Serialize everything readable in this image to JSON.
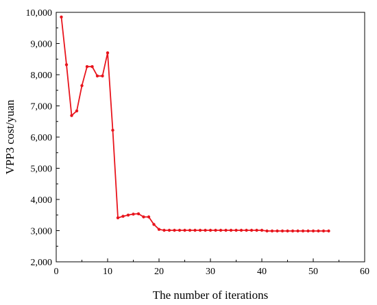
{
  "chart_data": {
    "type": "line",
    "title": "",
    "xlabel": "The number of iterations",
    "ylabel": "VPP3 cost/yuan",
    "xlim": [
      0,
      60
    ],
    "ylim": [
      2000,
      10000
    ],
    "xticks": [
      0,
      10,
      20,
      30,
      40,
      50,
      60
    ],
    "yticks": [
      2000,
      3000,
      4000,
      5000,
      6000,
      7000,
      8000,
      9000,
      10000
    ],
    "ytick_labels": [
      "2,000",
      "3,000",
      "4,000",
      "5,000",
      "6,000",
      "7,000",
      "8,000",
      "9,000",
      "10,000"
    ],
    "grid": false,
    "legend": "none",
    "color": "#e8141c",
    "series": [
      {
        "x": [
          1,
          2,
          3,
          4,
          5,
          6,
          7,
          8,
          9,
          10,
          11,
          12,
          13,
          14,
          15,
          16,
          17,
          18,
          19,
          20,
          21,
          22,
          23,
          24,
          25,
          26,
          27,
          28,
          29,
          30,
          31,
          32,
          33,
          34,
          35,
          36,
          37,
          38,
          39,
          40,
          41,
          42,
          43,
          44,
          45,
          46,
          47,
          48,
          49,
          50,
          51,
          52,
          53
        ],
        "values": [
          9850,
          8320,
          6690,
          6840,
          7650,
          8260,
          8260,
          7960,
          7960,
          8700,
          6220,
          3410,
          3460,
          3500,
          3530,
          3540,
          3440,
          3440,
          3200,
          3040,
          3010,
          3010,
          3010,
          3010,
          3010,
          3010,
          3010,
          3010,
          3010,
          3010,
          3010,
          3010,
          3010,
          3010,
          3010,
          3010,
          3010,
          3010,
          3010,
          3010,
          2990,
          2990,
          2990,
          2990,
          2990,
          2990,
          2990,
          2990,
          2990,
          2990,
          2990,
          2990,
          2990
        ]
      }
    ]
  }
}
